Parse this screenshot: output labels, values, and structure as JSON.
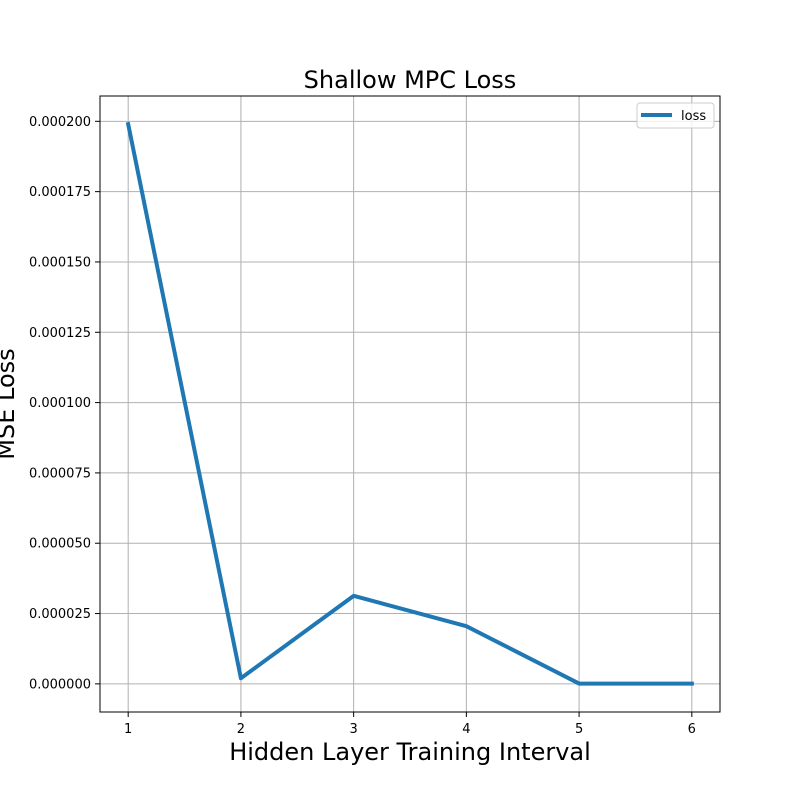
{
  "chart_data": {
    "type": "line",
    "title": "Shallow MPC Loss",
    "xlabel": "Hidden Layer Training Interval",
    "ylabel": "MSE Loss",
    "x": [
      1,
      2,
      3,
      4,
      5,
      6
    ],
    "series": [
      {
        "name": "loss",
        "values": [
          0.000199,
          2e-06,
          3.13e-05,
          2.05e-05,
          1e-07,
          1e-07
        ]
      }
    ],
    "xticks": [
      1,
      2,
      3,
      4,
      5,
      6
    ],
    "xtick_labels": [
      "1",
      "2",
      "3",
      "4",
      "5",
      "6"
    ],
    "yticks": [
      0,
      2.5e-05,
      5e-05,
      7.5e-05,
      0.0001,
      0.000125,
      0.00015,
      0.000175,
      0.0002
    ],
    "ytick_labels": [
      "0.000000",
      "0.000025",
      "0.000050",
      "0.000075",
      "0.000100",
      "0.000125",
      "0.000150",
      "0.000175",
      "0.000200"
    ],
    "xlim": [
      0.75,
      6.25
    ],
    "ylim": [
      -1e-05,
      0.000209
    ],
    "grid": true,
    "legend_position": "top-right",
    "line_color": "#1f77b4"
  }
}
